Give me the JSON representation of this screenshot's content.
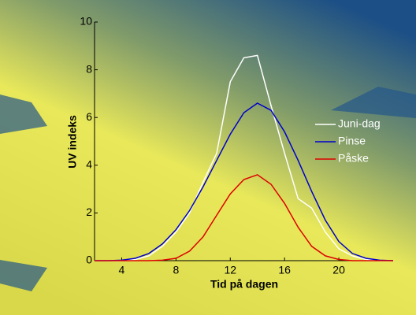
{
  "chart_data": {
    "type": "line",
    "xlabel": "Tid på dagen",
    "ylabel": "UV indeks",
    "x": [
      2,
      3,
      4,
      5,
      6,
      7,
      8,
      9,
      10,
      11,
      12,
      13,
      14,
      15,
      16,
      17,
      18,
      19,
      20,
      21,
      22,
      23,
      24
    ],
    "series": [
      {
        "name": "Juni-dag",
        "color": "#ffffff",
        "values": [
          0,
          0,
          0,
          0.05,
          0.2,
          0.6,
          1.2,
          2.0,
          3.3,
          4.5,
          7.5,
          8.5,
          8.6,
          6.5,
          4.5,
          2.6,
          2.2,
          1.2,
          0.5,
          0.2,
          0.05,
          0,
          0
        ]
      },
      {
        "name": "Pinse",
        "color": "#0000cc",
        "values": [
          0,
          0,
          0.02,
          0.1,
          0.3,
          0.7,
          1.3,
          2.1,
          3.1,
          4.2,
          5.3,
          6.2,
          6.6,
          6.3,
          5.4,
          4.2,
          2.9,
          1.7,
          0.8,
          0.3,
          0.1,
          0.02,
          0
        ]
      },
      {
        "name": "Påske",
        "color": "#dd0000",
        "values": [
          0,
          0,
          0,
          0,
          0,
          0.02,
          0.1,
          0.4,
          1.0,
          1.9,
          2.8,
          3.4,
          3.6,
          3.2,
          2.4,
          1.4,
          0.6,
          0.2,
          0.05,
          0,
          0,
          0,
          0
        ]
      }
    ],
    "xlim": [
      2,
      24
    ],
    "xticks": [
      4,
      8,
      12,
      16,
      20
    ],
    "ylim": [
      0,
      10
    ],
    "yticks": [
      0,
      2,
      4,
      6,
      8,
      10
    ],
    "legend": "right"
  }
}
